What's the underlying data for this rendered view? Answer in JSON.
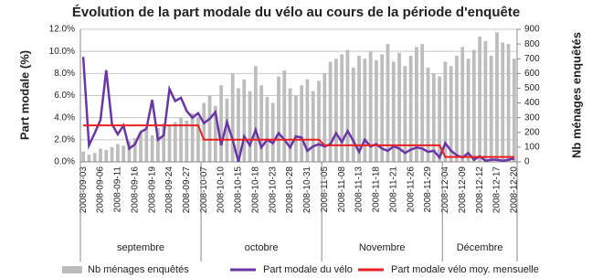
{
  "chart_data": {
    "type": "bar-line",
    "title": "Évolution de la part modale du vélo au cours de la période d'enquête",
    "ylabel": "Part modale (%)",
    "y2label": "Nb ménages enquêtés",
    "categories": [
      "2008-09-03",
      null,
      null,
      "2008-09-06",
      null,
      null,
      "2008-09-11",
      null,
      null,
      "2008-09-16",
      null,
      null,
      "2008-09-19",
      null,
      null,
      "2008-09-24",
      null,
      null,
      "2008-09-27",
      null,
      null,
      "2008-10-07",
      null,
      null,
      "2008-10-10",
      null,
      null,
      "2008-10-15",
      null,
      null,
      "2008-10-18",
      null,
      null,
      "2008-10-23",
      null,
      null,
      "2008-10-28",
      null,
      null,
      "2008-10-31",
      null,
      null,
      "2008-11-05",
      null,
      null,
      "2008-11-08",
      null,
      null,
      "2008-11-13",
      null,
      null,
      "2008-11-18",
      null,
      null,
      "2008-11-21",
      null,
      null,
      "2008-11-26",
      null,
      null,
      "2008-11-29",
      null,
      null,
      "2008-12-04",
      null,
      null,
      "2008-12-09",
      null,
      null,
      "2008-12-12",
      null,
      null,
      "2008-12-17",
      null,
      null,
      "2008-12-20"
    ],
    "months": [
      "septembre",
      "octobre",
      "Novembre",
      "Décembre"
    ],
    "ylim": [
      0,
      12
    ],
    "yticks": [
      {
        "value": 0,
        "label": "0.0%"
      },
      {
        "value": 2,
        "label": "2.0%"
      },
      {
        "value": 4,
        "label": "4.0%"
      },
      {
        "value": 6,
        "label": "6.0%"
      },
      {
        "value": 8,
        "label": "8.0%"
      },
      {
        "value": 10,
        "label": "10.0%"
      },
      {
        "value": 12,
        "label": "12.0%"
      }
    ],
    "y2lim": [
      0,
      900
    ],
    "y2ticks": [
      0,
      100,
      200,
      300,
      400,
      500,
      600,
      700,
      800,
      900
    ],
    "series": [
      {
        "name": "Nb ménages enquêtés",
        "type": "bar",
        "axis": "y2",
        "color": "#bdbdbd",
        "values": [
          70,
          50,
          60,
          90,
          80,
          100,
          120,
          110,
          140,
          160,
          200,
          220,
          180,
          230,
          260,
          250,
          270,
          300,
          280,
          330,
          300,
          400,
          450,
          380,
          520,
          430,
          600,
          500,
          560,
          480,
          650,
          520,
          440,
          400,
          580,
          620,
          500,
          450,
          520,
          560,
          480,
          550,
          600,
          680,
          700,
          730,
          760,
          640,
          720,
          700,
          750,
          690,
          730,
          800,
          680,
          740,
          650,
          720,
          780,
          800,
          640,
          600,
          580,
          680,
          650,
          720,
          780,
          700,
          760,
          850,
          820,
          720,
          880,
          810,
          800,
          700
        ]
      },
      {
        "name": "Part modale du vélo",
        "type": "line",
        "color": "#6a35a8",
        "values": [
          9.5,
          1.5,
          2.6,
          3.8,
          8.3,
          3.4,
          2.5,
          3.3,
          1.2,
          1.6,
          2.7,
          3.0,
          5.6,
          2.0,
          2.4,
          6.6,
          5.5,
          5.8,
          4.6,
          4.0,
          4.4,
          3.5,
          3.9,
          4.5,
          1.5,
          3.6,
          2.0,
          0.0,
          2.3,
          1.5,
          2.9,
          1.3,
          2.0,
          1.7,
          2.6,
          2.0,
          1.3,
          2.3,
          2.2,
          1.0,
          1.4,
          1.6,
          1.4,
          1.6,
          2.6,
          1.8,
          2.8,
          1.9,
          0.9,
          2.0,
          1.4,
          1.6,
          1.2,
          1.0,
          1.4,
          1.2,
          0.8,
          1.1,
          1.3,
          1.2,
          0.9,
          1.0,
          0.4,
          1.7,
          1.0,
          0.6,
          0.4,
          0.8,
          0.2,
          0.5,
          0.1,
          0.2,
          0.2,
          0.1,
          0.2,
          0.3
        ]
      },
      {
        "name": "Part modale vélo moy. mensuelle",
        "type": "line",
        "color": "#e8201f",
        "values": [
          3.3,
          3.3,
          3.3,
          3.3,
          3.3,
          3.3,
          3.3,
          3.3,
          3.3,
          3.3,
          3.3,
          3.3,
          3.3,
          3.3,
          3.3,
          3.3,
          3.3,
          3.3,
          3.3,
          3.3,
          3.3,
          2.0,
          2.0,
          2.0,
          2.0,
          2.0,
          2.0,
          2.0,
          2.0,
          2.0,
          2.0,
          2.0,
          2.0,
          2.0,
          2.0,
          2.0,
          2.0,
          2.0,
          2.0,
          2.0,
          2.0,
          2.0,
          1.5,
          1.5,
          1.5,
          1.5,
          1.5,
          1.5,
          1.5,
          1.5,
          1.5,
          1.5,
          1.5,
          1.5,
          1.5,
          1.5,
          1.5,
          1.5,
          1.5,
          1.5,
          1.5,
          1.5,
          1.5,
          0.45,
          0.45,
          0.45,
          0.45,
          0.45,
          0.45,
          0.45,
          0.45,
          0.45,
          0.45,
          0.45,
          0.45,
          0.45
        ]
      }
    ],
    "grid": true,
    "legend": "bottom"
  }
}
